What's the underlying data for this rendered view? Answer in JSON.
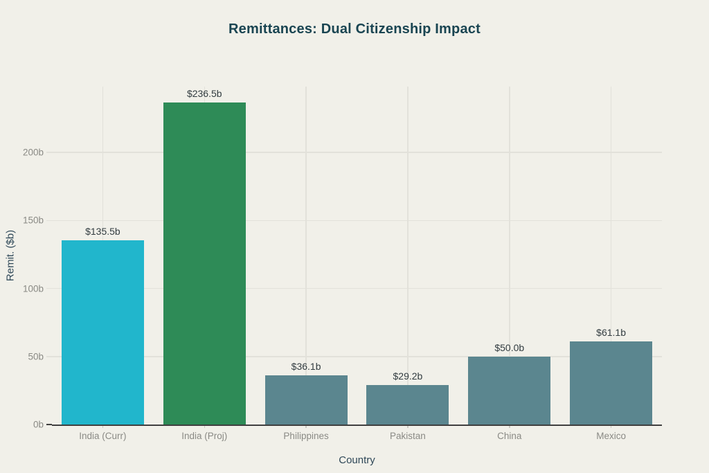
{
  "chart_data": {
    "type": "bar",
    "title": "Remittances: Dual Citizenship Impact",
    "xlabel": "Country",
    "ylabel": "Remit. ($b)",
    "categories": [
      "India (Curr)",
      "India (Proj)",
      "Philippines",
      "Pakistan",
      "China",
      "Mexico"
    ],
    "values": [
      135.5,
      236.5,
      36.1,
      29.2,
      50.0,
      61.1
    ],
    "bar_labels": [
      "$135.5b",
      "$236.5b",
      "$36.1b",
      "$29.2b",
      "$50.0b",
      "$61.1b"
    ],
    "bar_colors": [
      "#21b6cc",
      "#2e8b57",
      "#5b868f",
      "#5b868f",
      "#5b868f",
      "#5b868f"
    ],
    "ylim": [
      0,
      248.35
    ],
    "yticks": [
      0,
      50,
      100,
      150,
      200
    ],
    "ytick_labels": [
      "0b",
      "50b",
      "100b",
      "150b",
      "200b"
    ],
    "grid": true,
    "legend": false
  },
  "style": {
    "background": "#f1f0e9",
    "title_color": "#1a4552",
    "axis_title_color": "#2f4858",
    "tick_label_color": "#8a8a85",
    "value_label_color": "#323c40",
    "gridline_color": "#e2e1da",
    "tick_mark_color": "#c9c8c1",
    "axis_line_color": "#3f3f3f"
  }
}
